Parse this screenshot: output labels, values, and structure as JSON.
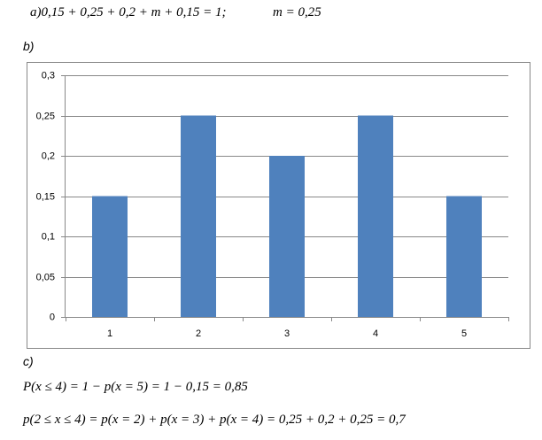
{
  "part_a": {
    "equation": "a)0,15 + 0,25 + 0,2 + m + 0,15 = 1;",
    "result": "m = 0,25"
  },
  "label_b": "b)",
  "chart_data": {
    "type": "bar",
    "categories": [
      "1",
      "2",
      "3",
      "4",
      "5"
    ],
    "values": [
      0.15,
      0.25,
      0.2,
      0.25,
      0.15
    ],
    "color": "#4f81bd",
    "ylim": [
      0,
      0.3
    ],
    "yticks": [
      {
        "value": 0,
        "label": "0"
      },
      {
        "value": 0.05,
        "label": "0,05"
      },
      {
        "value": 0.1,
        "label": "0,1"
      },
      {
        "value": 0.15,
        "label": "0,15"
      },
      {
        "value": 0.2,
        "label": "0,2"
      },
      {
        "value": 0.25,
        "label": "0,25"
      },
      {
        "value": 0.3,
        "label": "0,3"
      }
    ],
    "grid": true
  },
  "label_c": "c)",
  "lines": [
    "P(x ≤ 4) = 1 − p(x = 5) = 1 − 0,15 = 0,85",
    "p(2 ≤ x ≤ 4) = p(x = 2) + p(x = 3) + p(x = 4) = 0,25 + 0,2 + 0,25 = 0,7"
  ]
}
